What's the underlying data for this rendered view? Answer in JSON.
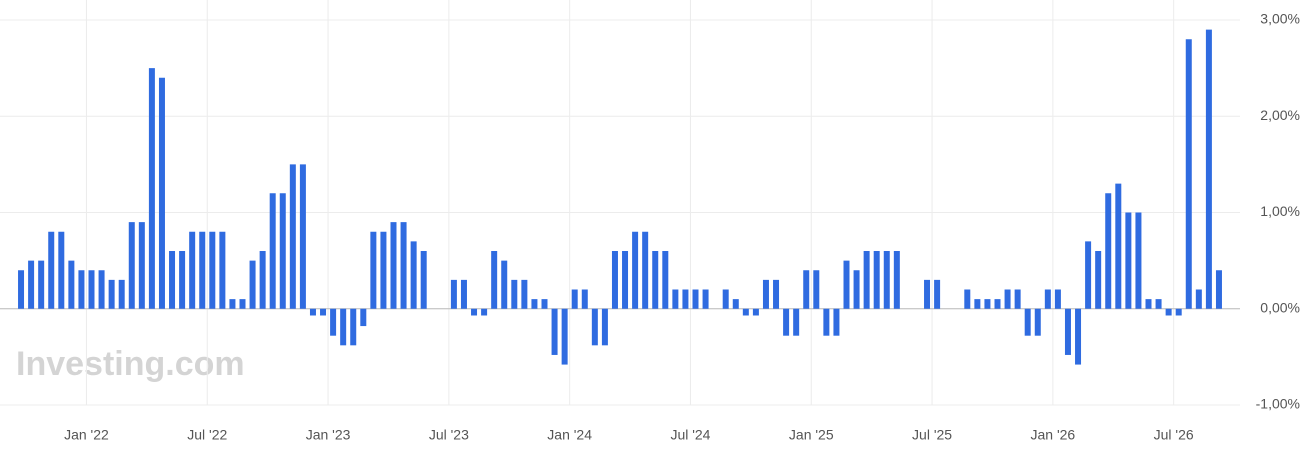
{
  "chart_data": {
    "type": "bar",
    "watermark": "Investing.com",
    "color": "#2f6be0",
    "grid": true,
    "ylim": [
      -1,
      3
    ],
    "yticks": [
      {
        "value": -1,
        "label": "-1,00%"
      },
      {
        "value": 0,
        "label": "0,00%"
      },
      {
        "value": 1,
        "label": "1,00%"
      },
      {
        "value": 2,
        "label": "2,00%"
      },
      {
        "value": 3,
        "label": "3,00%"
      }
    ],
    "categories": [
      null,
      null,
      null,
      null,
      null,
      null,
      null,
      "Jan '22",
      null,
      null,
      null,
      null,
      null,
      null,
      null,
      null,
      null,
      null,
      null,
      "Jul '22",
      null,
      null,
      null,
      null,
      null,
      null,
      null,
      null,
      null,
      null,
      null,
      "Jan '23",
      null,
      null,
      null,
      null,
      null,
      null,
      null,
      null,
      null,
      null,
      null,
      "Jul '23",
      null,
      null,
      null,
      null,
      null,
      null,
      null,
      null,
      null,
      null,
      null,
      "Jan '24",
      null,
      null,
      null,
      null,
      null,
      null,
      null,
      null,
      null,
      null,
      null,
      "Jul '24",
      null,
      null,
      null,
      null,
      null,
      null,
      null,
      null,
      null,
      null,
      null,
      "Jan '25",
      null,
      null,
      null,
      null,
      null,
      null,
      null,
      null,
      null,
      null,
      null,
      "Jul '25",
      null,
      null,
      null,
      null,
      null,
      null,
      null,
      null,
      null,
      null,
      null,
      "Jan '26",
      null,
      null,
      null,
      null,
      null,
      null,
      null,
      null,
      null,
      null,
      null,
      "Jul '26",
      null,
      null,
      null,
      null
    ],
    "values": [
      0.4,
      0.5,
      0.5,
      0.8,
      0.8,
      0.5,
      0.4,
      0.4,
      0.4,
      0.3,
      0.3,
      0.9,
      0.9,
      2.5,
      2.4,
      0.6,
      0.6,
      0.8,
      0.8,
      0.8,
      0.8,
      0.1,
      0.1,
      0.5,
      0.6,
      1.2,
      1.2,
      1.5,
      1.5,
      -0.07,
      -0.07,
      -0.28,
      -0.38,
      -0.38,
      -0.18,
      0.8,
      0.8,
      0.9,
      0.9,
      0.7,
      0.6,
      null,
      null,
      0.3,
      0.3,
      -0.07,
      -0.07,
      0.6,
      0.5,
      0.3,
      0.3,
      0.1,
      0.1,
      -0.48,
      -0.58,
      0.2,
      0.2,
      -0.38,
      -0.38,
      0.6,
      0.6,
      0.8,
      0.8,
      0.6,
      0.6,
      0.2,
      0.2,
      0.2,
      0.2,
      null,
      0.2,
      0.1,
      -0.07,
      -0.07,
      0.3,
      0.3,
      -0.28,
      -0.28,
      0.4,
      0.4,
      -0.28,
      -0.28,
      0.5,
      0.4,
      0.6,
      0.6,
      0.6,
      0.6,
      null,
      null,
      0.3,
      0.3,
      null,
      null,
      0.2,
      0.1,
      0.1,
      0.1,
      0.2,
      0.2,
      -0.28,
      -0.28,
      0.2,
      0.2,
      -0.48,
      -0.58,
      0.7,
      0.6,
      1.2,
      1.3,
      1.0,
      1.0,
      0.1,
      0.1,
      -0.07,
      -0.07,
      2.8,
      0.2,
      2.9,
      0.4
    ]
  }
}
